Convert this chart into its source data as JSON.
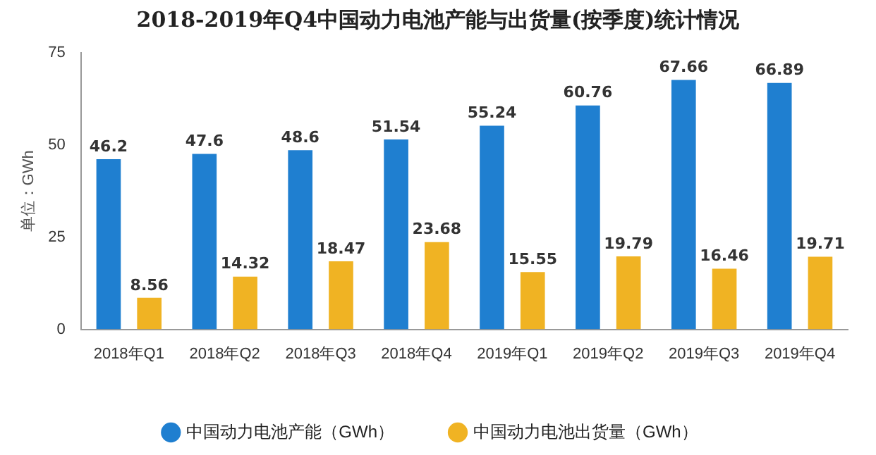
{
  "chart_data": {
    "type": "bar",
    "title": "2018-2019年Q4中国动力电池产能与出货量(按季度)统计情况",
    "ylabel": "单位：GWh",
    "categories": [
      "2018年Q1",
      "2018年Q2",
      "2018年Q3",
      "2018年Q4",
      "2019年Q1",
      "2019年Q2",
      "2019年Q3",
      "2019年Q4"
    ],
    "series": [
      {
        "name": "中国动力电池产能（GWh）",
        "color": "#1f7fd0",
        "values": [
          46.2,
          47.6,
          48.6,
          51.54,
          55.24,
          60.76,
          67.66,
          66.89
        ]
      },
      {
        "name": "中国动力电池出货量（GWh）",
        "color": "#f0b323",
        "values": [
          8.56,
          14.32,
          18.47,
          23.68,
          15.55,
          19.79,
          16.46,
          19.71
        ]
      }
    ],
    "ylim": [
      0,
      75
    ],
    "yticks": [
      0,
      25,
      50,
      75
    ],
    "grid": false,
    "legend": "bottom",
    "data_labels": true
  }
}
